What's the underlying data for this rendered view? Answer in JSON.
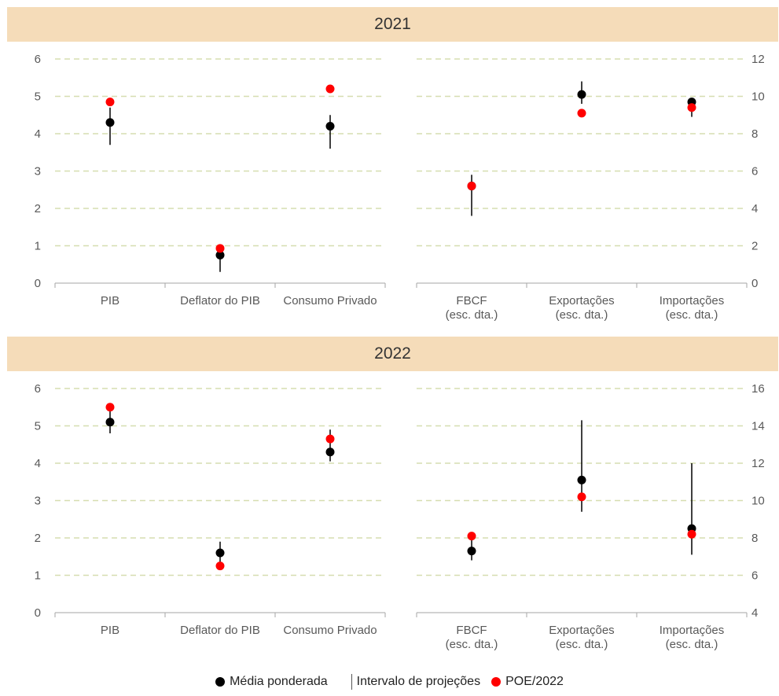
{
  "banners": {
    "top": "2021",
    "bottom": "2022"
  },
  "legend": {
    "mean_label": "Média ponderada",
    "range_label": "Intervalo de projeções",
    "poe_label": "POE/2022"
  },
  "colors": {
    "mean": "#000000",
    "poe": "#ff0000",
    "range": "#000000",
    "grid": "#d6deb0",
    "axis": "#a6a6a6",
    "tick_text": "#595959",
    "banner": "#f5dcb9"
  },
  "chart_data": [
    {
      "type": "scatter",
      "title": "2021",
      "panel": "left",
      "categories": [
        "PIB",
        "Deflator do PIB",
        "Consumo Privado"
      ],
      "ylim": [
        0,
        6
      ],
      "yticks": [
        "0",
        "1",
        "2",
        "3",
        "4",
        "5",
        "6"
      ],
      "grid": true,
      "series": [
        {
          "name": "Média ponderada",
          "values": [
            4.3,
            0.75,
            4.2
          ]
        },
        {
          "name": "Intervalo de projeções",
          "low": [
            3.7,
            0.3,
            3.6
          ],
          "high": [
            4.7,
            0.95,
            4.5
          ]
        },
        {
          "name": "POE/2022",
          "values": [
            4.85,
            0.93,
            5.2
          ]
        }
      ]
    },
    {
      "type": "scatter",
      "title": "2021",
      "panel": "right",
      "categories": [
        "FBCF (esc. dta.)",
        "Exportações (esc. dta.)",
        "Importações (esc. dta.)"
      ],
      "category_lines": [
        [
          "FBCF",
          "(esc. dta.)"
        ],
        [
          "Exportações",
          "(esc. dta.)"
        ],
        [
          "Importações",
          "(esc. dta.)"
        ]
      ],
      "ylim": [
        0,
        12
      ],
      "yticks": [
        "0",
        "2",
        "4",
        "6",
        "8",
        "10",
        "12"
      ],
      "grid": true,
      "series": [
        {
          "name": "Média ponderada",
          "values": [
            5.2,
            10.1,
            9.7
          ]
        },
        {
          "name": "Intervalo de projeções",
          "low": [
            3.6,
            9.6,
            8.9
          ],
          "high": [
            5.8,
            10.8,
            9.9
          ]
        },
        {
          "name": "POE/2022",
          "values": [
            5.2,
            9.1,
            9.4
          ]
        }
      ]
    },
    {
      "type": "scatter",
      "title": "2022",
      "panel": "left",
      "categories": [
        "PIB",
        "Deflator do PIB",
        "Consumo Privado"
      ],
      "ylim": [
        0,
        6
      ],
      "yticks": [
        "0",
        "1",
        "2",
        "3",
        "4",
        "5",
        "6"
      ],
      "grid": true,
      "series": [
        {
          "name": "Média ponderada",
          "values": [
            5.1,
            1.6,
            4.3
          ]
        },
        {
          "name": "Intervalo de projeções",
          "low": [
            4.8,
            1.3,
            4.05
          ],
          "high": [
            5.4,
            1.9,
            4.9
          ]
        },
        {
          "name": "POE/2022",
          "values": [
            5.5,
            1.25,
            4.65
          ]
        }
      ]
    },
    {
      "type": "scatter",
      "title": "2022",
      "panel": "right",
      "categories": [
        "FBCF (esc. dta.)",
        "Exportações (esc. dta.)",
        "Importações (esc. dta.)"
      ],
      "category_lines": [
        [
          "FBCF",
          "(esc. dta.)"
        ],
        [
          "Exportações",
          "(esc. dta.)"
        ],
        [
          "Importações",
          "(esc. dta.)"
        ]
      ],
      "ylim": [
        4,
        16
      ],
      "yticks": [
        "4",
        "6",
        "8",
        "10",
        "12",
        "14",
        "16"
      ],
      "grid": true,
      "series": [
        {
          "name": "Média ponderada",
          "values": [
            7.3,
            11.1,
            8.5
          ]
        },
        {
          "name": "Intervalo de projeções",
          "low": [
            6.8,
            9.4,
            7.1
          ],
          "high": [
            7.9,
            14.3,
            12.0
          ]
        },
        {
          "name": "POE/2022",
          "values": [
            8.1,
            10.2,
            8.2
          ]
        }
      ]
    }
  ]
}
